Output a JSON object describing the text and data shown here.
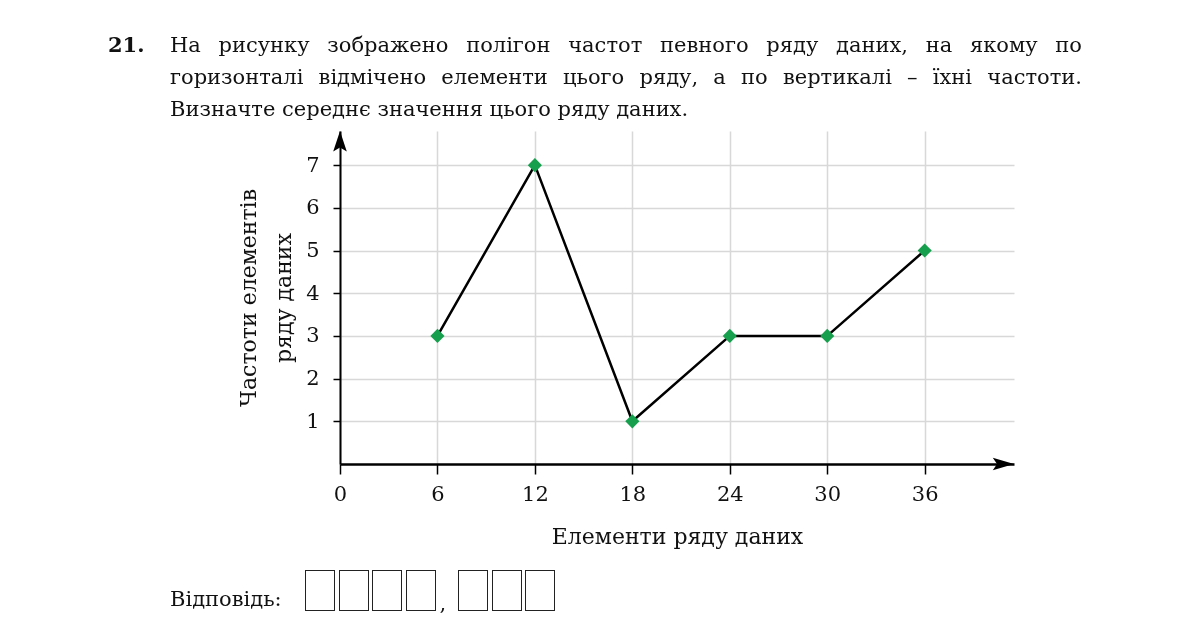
{
  "chart_data": {
    "type": "line",
    "title": "На рисунку зображено полігон частот певного ряду даних, на якому по горизонталі відмічено елементи цього ряду, а по вертикалі – їхні частоти. Визначте середнє значення цього ряду даних.",
    "xlabel": "Елементи ряду даних",
    "ylabel": "Частоти елементів\nряду даних",
    "annotations": [
      "21.",
      "Відповідь:",
      ","
    ],
    "x": [
      6,
      12,
      18,
      24,
      30,
      36
    ],
    "values": [
      3,
      7,
      1,
      3,
      3,
      5
    ],
    "color": "#000000",
    "colors": [
      "#16a04e",
      "#16a04e",
      "#16a04e",
      "#16a04e",
      "#16a04e",
      "#16a04e"
    ],
    "marker": "diamond",
    "line_style": "solid",
    "grid": true,
    "xlim": [
      0,
      41.5
    ],
    "ylim": [
      0,
      7.8
    ],
    "xticks": [
      0,
      6,
      12,
      18,
      24,
      30,
      36
    ],
    "yticks": [
      1,
      2,
      3,
      4,
      5,
      6,
      7
    ]
  }
}
